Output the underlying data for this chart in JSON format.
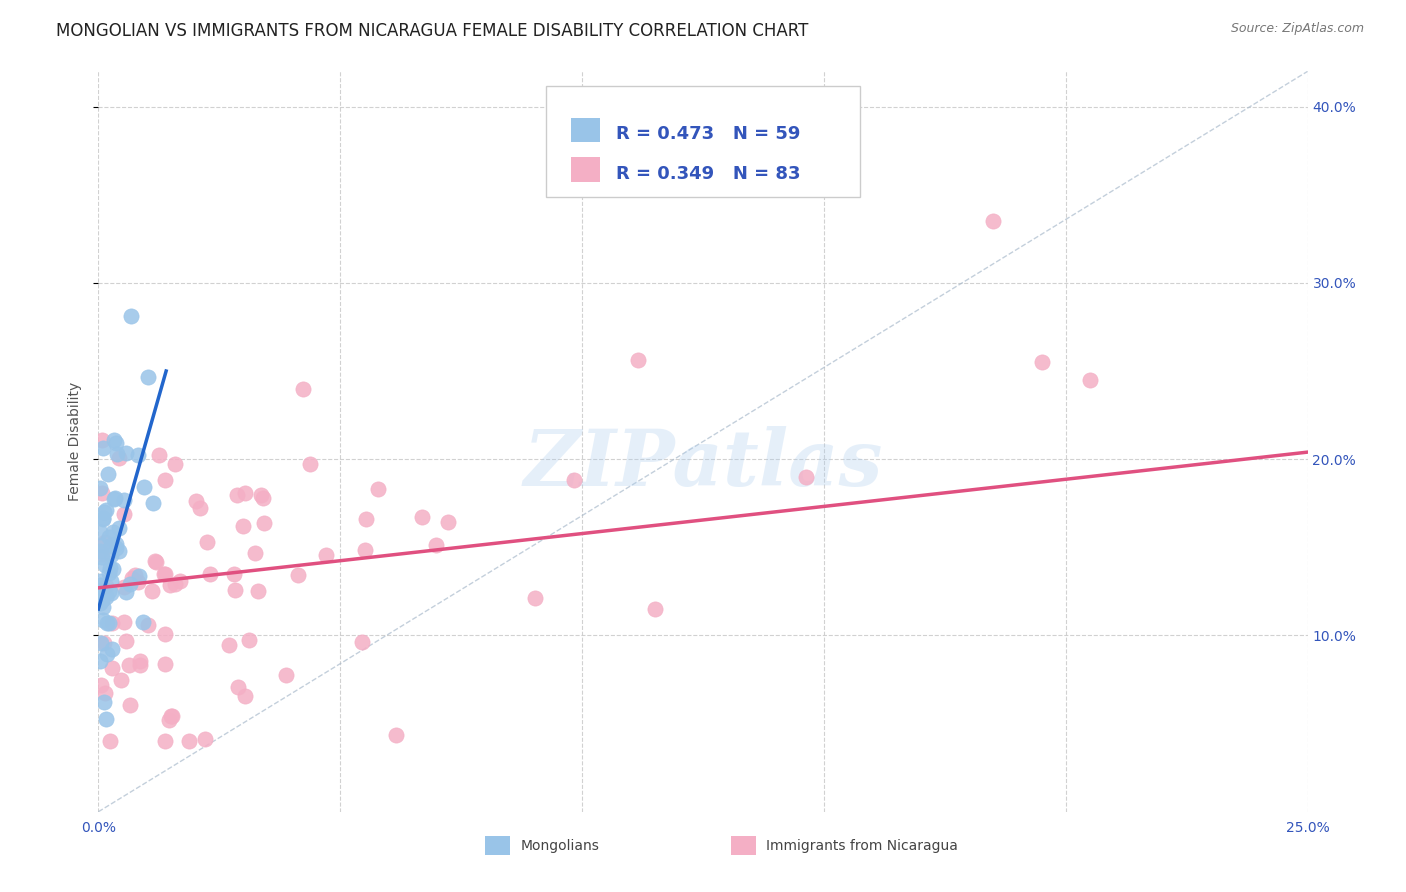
{
  "title": "MONGOLIAN VS IMMIGRANTS FROM NICARAGUA FEMALE DISABILITY CORRELATION CHART",
  "source": "Source: ZipAtlas.com",
  "ylabel": "Female Disability",
  "xlabel_mongolians": "Mongolians",
  "xlabel_nicaragua": "Immigrants from Nicaragua",
  "x_min": 0.0,
  "x_max": 0.25,
  "y_min": 0.0,
  "y_max": 0.42,
  "mongolian_color": "#99c4e8",
  "nicaragua_color": "#f4afc5",
  "mongolian_line_color": "#2266cc",
  "nicaragua_line_color": "#e05080",
  "diagonal_color": "#aabbcc",
  "mongolian_R": 0.473,
  "mongolian_N": 59,
  "nicaragua_R": 0.349,
  "nicaragua_N": 83,
  "background_color": "#ffffff",
  "grid_color": "#cccccc",
  "title_fontsize": 12,
  "axis_label_fontsize": 10,
  "tick_fontsize": 10,
  "legend_fontsize": 13,
  "watermark_text": "ZIPatlas",
  "legend_R_color": "#3355bb",
  "legend_N_color": "#3355bb",
  "tick_color": "#3355bb"
}
